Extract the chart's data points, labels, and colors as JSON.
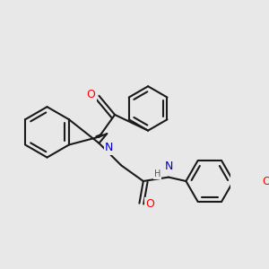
{
  "bg_color": "#e8e8e8",
  "bond_color": "#1a1a1a",
  "bond_width": 1.5,
  "atom_colors": {
    "O": "#ff0000",
    "N": "#0000cc",
    "C": "#1a1a1a",
    "H": "#555555"
  },
  "font_size_atom": 9,
  "font_size_h": 7
}
